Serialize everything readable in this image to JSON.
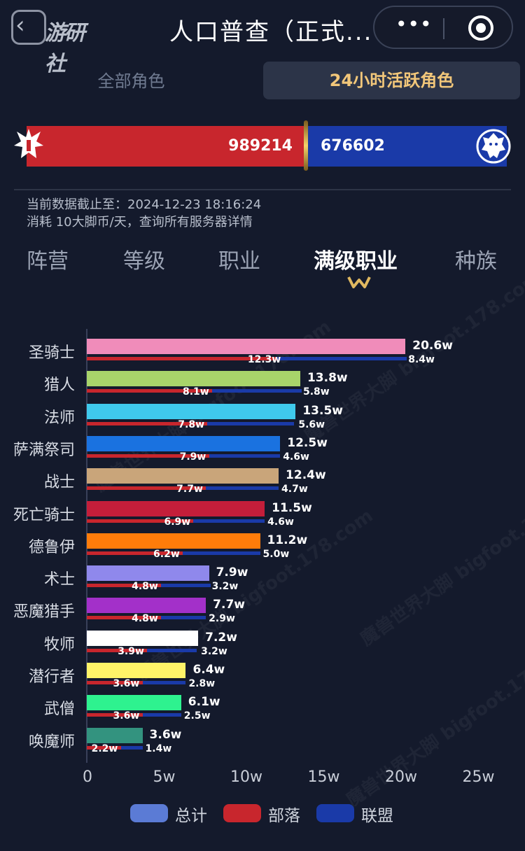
{
  "header": {
    "logo_text": "游研社",
    "back_glyph": "‹",
    "title": "人口普查（正式...",
    "more_glyph": "•••"
  },
  "tabs": {
    "all": "全部角色",
    "active_24h": "24小时活跃角色"
  },
  "faction": {
    "horde_value": "989214",
    "alliance_value": "676602",
    "horde_color": "#c8262d",
    "alliance_color": "#1a3aa8"
  },
  "info": {
    "line1": "当前数据截止至：2024-12-23 18:16:24",
    "line2": "消耗 10大脚币/天，查询所有服务器详情"
  },
  "categories": [
    {
      "label": "阵营"
    },
    {
      "label": "等级"
    },
    {
      "label": "职业"
    },
    {
      "label": "满级职业"
    },
    {
      "label": "种族"
    }
  ],
  "watermark": "魔兽世界大脚 bigfoot.178.com",
  "chart_data": {
    "type": "bar",
    "orientation": "horizontal",
    "unit": "w",
    "categories": [
      "圣骑士",
      "猎人",
      "法师",
      "萨满祭司",
      "战士",
      "死亡骑士",
      "德鲁伊",
      "术士",
      "恶魔猎手",
      "牧师",
      "潜行者",
      "武僧",
      "唤魔师"
    ],
    "colors": [
      "#f08cba",
      "#a8d46a",
      "#3fc9ec",
      "#1a72e0",
      "#c9a57a",
      "#c41e3a",
      "#ff7c0a",
      "#8f88ec",
      "#a330c9",
      "#ffffff",
      "#fff468",
      "#2ef28f",
      "#33937f"
    ],
    "series": [
      {
        "name": "总计",
        "values": [
          20.6,
          13.8,
          13.5,
          12.5,
          12.4,
          11.5,
          11.2,
          7.9,
          7.7,
          7.2,
          6.4,
          6.1,
          3.6
        ],
        "labels": [
          "20.6w",
          "13.8w",
          "13.5w",
          "12.5w",
          "12.4w",
          "11.5w",
          "11.2w",
          "7.9w",
          "7.7w",
          "7.2w",
          "6.4w",
          "6.1w",
          "3.6w"
        ]
      },
      {
        "name": "部落",
        "values": [
          12.3,
          8.1,
          7.8,
          7.9,
          7.7,
          6.9,
          6.2,
          4.8,
          4.8,
          3.9,
          3.6,
          3.6,
          2.2
        ],
        "labels": [
          "12.3w",
          "8.1w",
          "7.8w",
          "7.9w",
          "7.7w",
          "6.9w",
          "6.2w",
          "4.8w",
          "4.8w",
          "3.9w",
          "3.6w",
          "3.6w",
          "2.2w"
        ]
      },
      {
        "name": "联盟",
        "values": [
          8.4,
          5.8,
          5.6,
          4.6,
          4.7,
          4.6,
          5.0,
          3.2,
          2.9,
          3.2,
          2.8,
          2.5,
          1.4
        ],
        "labels": [
          "8.4w",
          "5.8w",
          "5.6w",
          "4.6w",
          "4.7w",
          "4.6w",
          "5.0w",
          "3.2w",
          "2.9w",
          "3.2w",
          "2.8w",
          "2.5w",
          "1.4w"
        ]
      }
    ],
    "xlim": [
      0,
      25
    ],
    "xticks": [
      "0",
      "5w",
      "10w",
      "15w",
      "20w",
      "25w"
    ],
    "legend": [
      {
        "label": "总计",
        "color": "#5b7bd5"
      },
      {
        "label": "部落",
        "color": "#c8262d"
      },
      {
        "label": "联盟",
        "color": "#1a3aa8"
      }
    ]
  }
}
